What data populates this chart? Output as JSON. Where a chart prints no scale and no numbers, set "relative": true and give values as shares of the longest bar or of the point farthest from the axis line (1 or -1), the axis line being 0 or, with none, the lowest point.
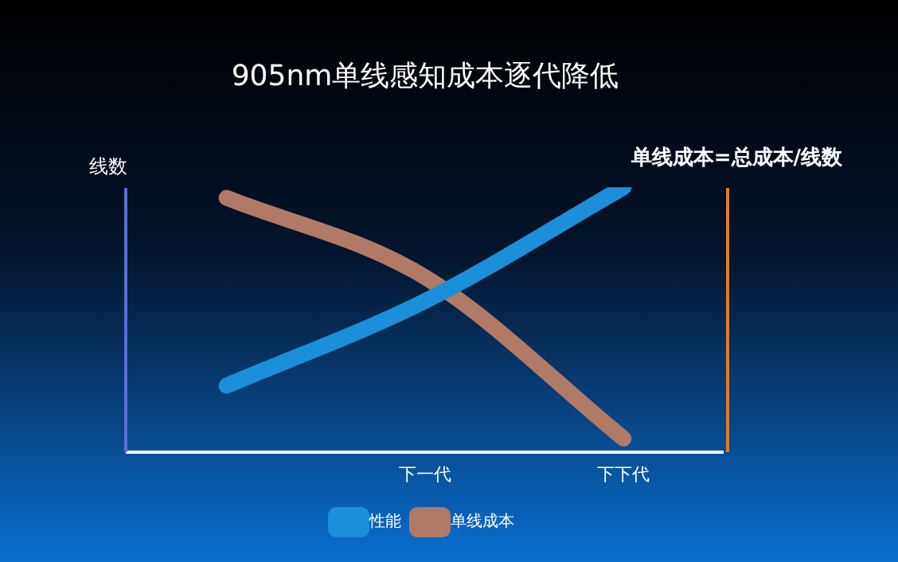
{
  "chart_data": {
    "type": "line",
    "title": "905nm单线感知成本逐代降低",
    "ylabel": "线数",
    "annotations": [
      "单线成本=总成本/线数"
    ],
    "categories": [
      null,
      "下一代",
      "下下代"
    ],
    "relative": true,
    "grid": false,
    "legend": "bottom",
    "marker": "none",
    "series": [
      {
        "name": "性能",
        "color": "#1b8fd8",
        "values": [
          0.25,
          0.57,
          1
        ]
      },
      {
        "name": "单线成本",
        "color": "#b07a66",
        "values": [
          0.96,
          0.66,
          0.05
        ]
      }
    ]
  }
}
